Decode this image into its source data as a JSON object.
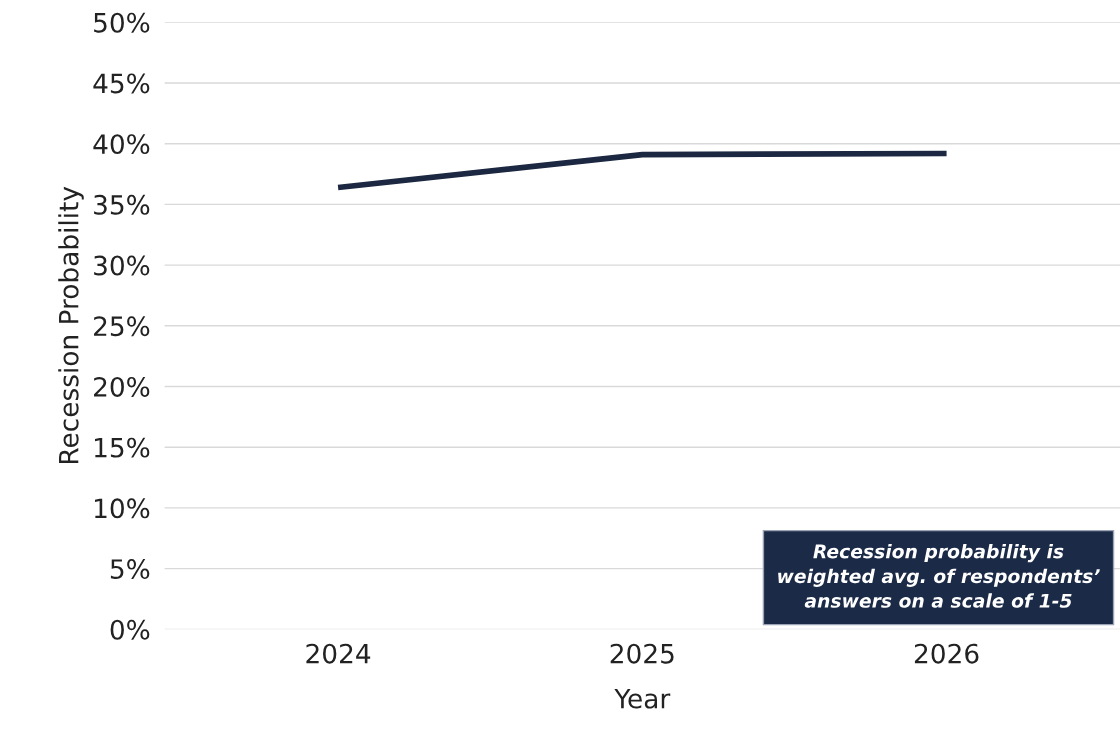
{
  "chart_data": {
    "type": "line",
    "xlabel": "Year",
    "ylabel": "Recession Probability",
    "categories": [
      "2024",
      "2025",
      "2026"
    ],
    "series": [
      {
        "color": "#1c2841",
        "values": [
          36.4,
          39.1,
          39.2
        ]
      }
    ],
    "ylim": [
      0,
      50
    ],
    "yticks": [
      {
        "value": 0,
        "label": "0%"
      },
      {
        "value": 5,
        "label": "5%"
      },
      {
        "value": 10,
        "label": "10%"
      },
      {
        "value": 15,
        "label": "15%"
      },
      {
        "value": 20,
        "label": "20%"
      },
      {
        "value": 25,
        "label": "25%"
      },
      {
        "value": 30,
        "label": "30%"
      },
      {
        "value": 35,
        "label": "35%"
      },
      {
        "value": 40,
        "label": "40%"
      },
      {
        "value": 45,
        "label": "45%"
      },
      {
        "value": 50,
        "label": "50%"
      }
    ],
    "grid": "y",
    "marker": "none",
    "line_style": "solid",
    "annotations": [
      "Recession probability is\nweighted avg. of respondents’\nanswers on a scale of 1-5"
    ]
  }
}
